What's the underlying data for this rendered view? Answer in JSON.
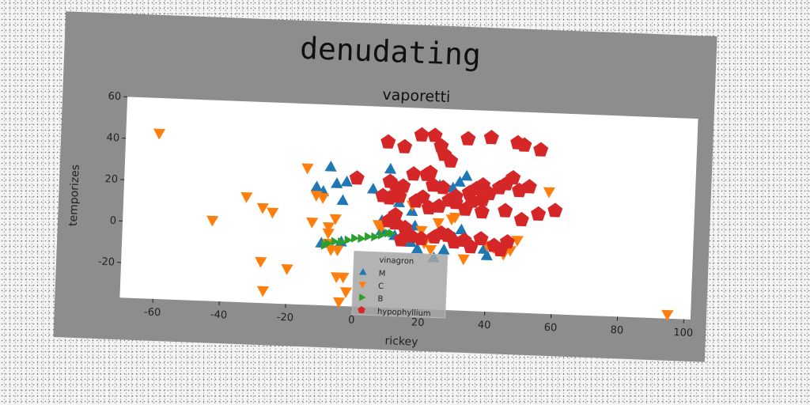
{
  "chart_data": {
    "type": "scatter",
    "title": "denudating",
    "subtitle": "vaporetti",
    "xlabel": "rickey",
    "ylabel": "temporizes",
    "xlim": [
      -70,
      102
    ],
    "ylim": [
      -37,
      60
    ],
    "xticks": [
      -60,
      -40,
      -20,
      0,
      20,
      40,
      60,
      80,
      100
    ],
    "yticks": [
      -20,
      0,
      20,
      40,
      60
    ],
    "grid": false,
    "legend": {
      "title": "vinagron",
      "placement": "lower-center",
      "entries": [
        "M",
        "C",
        "B",
        "hypophyllium"
      ]
    },
    "series": [
      {
        "name": "M",
        "marker": "triangle-up",
        "color": "#1f77b4",
        "points": [
          [
            -8,
            30
          ],
          [
            -12,
            20
          ],
          [
            -10,
            18
          ],
          [
            -6,
            22
          ],
          [
            -4,
            14
          ],
          [
            -3,
            23
          ],
          [
            5,
            20
          ],
          [
            10,
            30
          ],
          [
            11,
            24
          ],
          [
            13,
            14
          ],
          [
            17,
            10
          ],
          [
            8,
            5
          ],
          [
            10,
            4
          ],
          [
            18,
            3
          ],
          [
            25,
            23
          ],
          [
            29,
            22
          ],
          [
            31,
            25
          ],
          [
            33,
            28
          ],
          [
            36,
            23
          ],
          [
            32,
            2
          ],
          [
            30,
            -2
          ],
          [
            27,
            -8
          ],
          [
            24,
            -12
          ],
          [
            19,
            -8
          ],
          [
            17,
            -5
          ],
          [
            15,
            -3
          ],
          [
            12,
            -2
          ],
          [
            8,
            0
          ],
          [
            -10,
            -7
          ],
          [
            -4,
            -6
          ],
          [
            40,
            -10
          ],
          [
            39,
            -7
          ]
        ]
      },
      {
        "name": "C",
        "marker": "triangle-down",
        "color": "#ff7f0e",
        "points": [
          [
            -60,
            43
          ],
          [
            -43,
            2
          ],
          [
            -33,
            14
          ],
          [
            -28,
            9
          ],
          [
            -25,
            7
          ],
          [
            -15,
            29
          ],
          [
            -12,
            16
          ],
          [
            -10,
            15
          ],
          [
            -13,
            3
          ],
          [
            -8,
            1
          ],
          [
            -8,
            -2
          ],
          [
            -8,
            -7
          ],
          [
            -7,
            -10
          ],
          [
            -6,
            5
          ],
          [
            -5,
            -10
          ],
          [
            -28,
            -17
          ],
          [
            -20,
            -20
          ],
          [
            -5,
            -23
          ],
          [
            -3,
            -23
          ],
          [
            -27,
            -31
          ],
          [
            -4,
            -35
          ],
          [
            -2,
            -30
          ],
          [
            7,
            3
          ],
          [
            8,
            2
          ],
          [
            12,
            17
          ],
          [
            13,
            22
          ],
          [
            17,
            13
          ],
          [
            20,
            1
          ],
          [
            21,
            -5
          ],
          [
            23,
            -8
          ],
          [
            25,
            5
          ],
          [
            29,
            7
          ],
          [
            30,
            8
          ],
          [
            33,
            -12
          ],
          [
            40,
            -5
          ],
          [
            42,
            -6
          ],
          [
            45,
            -9
          ],
          [
            47,
            -7
          ],
          [
            49,
            -2
          ],
          [
            58,
            22
          ],
          [
            95,
            -35
          ]
        ]
      },
      {
        "name": "B",
        "marker": "triangle-right",
        "color": "#2ca02c",
        "points": [
          [
            -9,
            -8
          ],
          [
            -8,
            -7
          ],
          [
            -6,
            -6
          ],
          [
            -4,
            -6
          ],
          [
            -2,
            -5
          ],
          [
            0,
            -4
          ],
          [
            2,
            -4
          ],
          [
            4,
            -3
          ],
          [
            6,
            -3
          ],
          [
            8,
            -2
          ],
          [
            10,
            -1
          ],
          [
            11,
            -1
          ]
        ]
      },
      {
        "name": "hypophyllium",
        "marker": "pentagon",
        "color": "#d62728",
        "points": [
          [
            9,
            43
          ],
          [
            14,
            41
          ],
          [
            19,
            47
          ],
          [
            23,
            47
          ],
          [
            25,
            42
          ],
          [
            26,
            38
          ],
          [
            28,
            35
          ],
          [
            33,
            46
          ],
          [
            40,
            47
          ],
          [
            48,
            45
          ],
          [
            50,
            44
          ],
          [
            55,
            42
          ],
          [
            0,
            25
          ],
          [
            10,
            24
          ],
          [
            12,
            21
          ],
          [
            14,
            22
          ],
          [
            17,
            28
          ],
          [
            21,
            28
          ],
          [
            22,
            29
          ],
          [
            8,
            17
          ],
          [
            10,
            16
          ],
          [
            13,
            17
          ],
          [
            18,
            15
          ],
          [
            22,
            12
          ],
          [
            25,
            13
          ],
          [
            28,
            16
          ],
          [
            30,
            18
          ],
          [
            33,
            12
          ],
          [
            35,
            16
          ],
          [
            38,
            11
          ],
          [
            38,
            17
          ],
          [
            40,
            20
          ],
          [
            43,
            23
          ],
          [
            45,
            25
          ],
          [
            47,
            28
          ],
          [
            49,
            22
          ],
          [
            52,
            24
          ],
          [
            45,
            12
          ],
          [
            50,
            8
          ],
          [
            55,
            11
          ],
          [
            60,
            13
          ],
          [
            12,
            4
          ],
          [
            15,
            2
          ],
          [
            20,
            -3
          ],
          [
            24,
            -2
          ],
          [
            26,
            0
          ],
          [
            28,
            -1
          ],
          [
            30,
            -4
          ],
          [
            33,
            -3
          ],
          [
            35,
            -6
          ],
          [
            38,
            -2
          ],
          [
            42,
            -5
          ],
          [
            44,
            -7
          ],
          [
            46,
            -3
          ],
          [
            14,
            -4
          ],
          [
            17,
            -2
          ],
          [
            10,
            5
          ],
          [
            12,
            8
          ],
          [
            20,
            17
          ],
          [
            23,
            23
          ],
          [
            26,
            22
          ],
          [
            30,
            15
          ],
          [
            34,
            20
          ],
          [
            36,
            22
          ],
          [
            38,
            24
          ]
        ]
      }
    ]
  }
}
